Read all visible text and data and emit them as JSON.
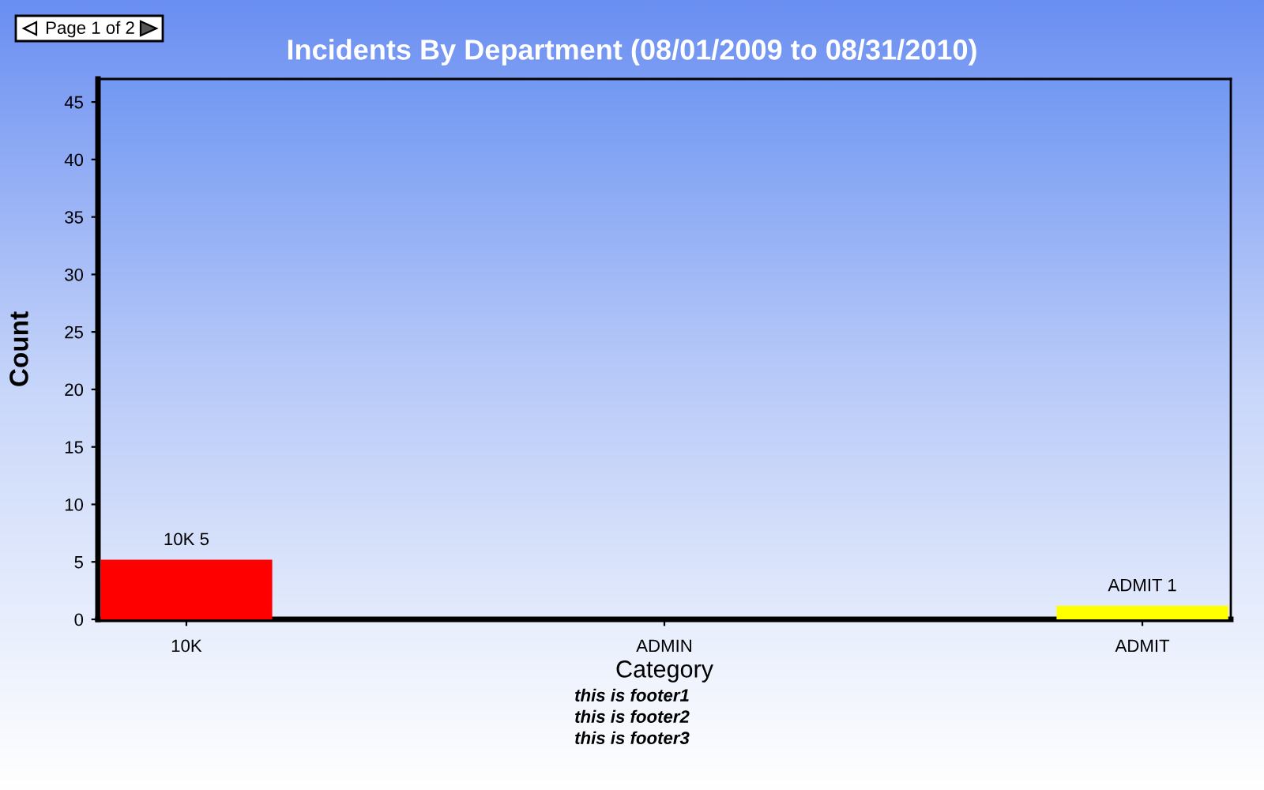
{
  "chart_data": {
    "type": "bar",
    "title": "Incidents By Department (08/01/2009 to 08/31/2010)",
    "xlabel": "Category",
    "ylabel": "Count",
    "categories": [
      "10K",
      "ADMIN",
      "ADMIT"
    ],
    "values": [
      5,
      0,
      1
    ],
    "colors": [
      "#ff0000",
      "#000000",
      "#ffff00"
    ],
    "value_labels": [
      "10K 5",
      null,
      "ADMIT 1"
    ],
    "ylim": [
      0,
      47
    ],
    "yticks": [
      0,
      5,
      10,
      15,
      20,
      25,
      30,
      35,
      40,
      45
    ],
    "grid": false,
    "annotations": [
      "Page 1 of 2",
      "this is footer1",
      "this is footer2",
      "this is footer3"
    ]
  }
}
